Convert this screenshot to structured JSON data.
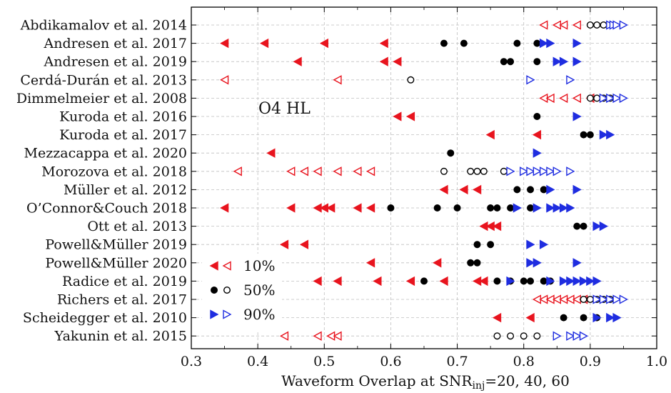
{
  "chart_data": {
    "type": "scatter",
    "title": "",
    "annotation": "O4 HL",
    "xlabel_main": "Waveform Overlap at SNR",
    "xlabel_sub": "inj",
    "xlabel_tail": "=20, 40, 60",
    "xlim": [
      0.3,
      1.0
    ],
    "xticks": [
      "0.3",
      "0.4",
      "0.5",
      "0.6",
      "0.7",
      "0.8",
      "0.9",
      "1.0"
    ],
    "grid": true,
    "legend_position": "lower-left",
    "legend": [
      {
        "label": "10%",
        "color": "#e8141e",
        "marker": "triangle-left"
      },
      {
        "label": "50%",
        "color": "#000000",
        "marker": "circle"
      },
      {
        "label": "90%",
        "color": "#1f2de0",
        "marker": "triangle-right"
      }
    ],
    "series": [
      {
        "name": "10%",
        "color": "#e8141e",
        "marker": "triangle-left"
      },
      {
        "name": "50%",
        "color": "#000000",
        "marker": "circle"
      },
      {
        "name": "90%",
        "color": "#1f2de0",
        "marker": "triangle-right"
      }
    ],
    "categories": [
      {
        "label": "Abdikamalov et al. 2014",
        "p10_filled": [],
        "p10_open": [
          0.83,
          0.85,
          0.86,
          0.88
        ],
        "p50_filled": [],
        "p50_open": [
          0.9,
          0.91,
          0.92
        ],
        "p90_filled": [],
        "p90_open": [
          0.93,
          0.935,
          0.94,
          0.95
        ]
      },
      {
        "label": "Andresen et al. 2017",
        "p10_filled": [
          0.35,
          0.41,
          0.5,
          0.59
        ],
        "p10_open": [],
        "p50_filled": [
          0.68,
          0.71,
          0.79,
          0.82
        ],
        "p50_open": [],
        "p90_filled": [
          0.83,
          0.84,
          0.88
        ],
        "p90_open": []
      },
      {
        "label": "Andresen et al. 2019",
        "p10_filled": [
          0.46,
          0.59,
          0.61
        ],
        "p10_open": [],
        "p50_filled": [
          0.77,
          0.78,
          0.82
        ],
        "p50_open": [],
        "p90_filled": [
          0.85,
          0.86,
          0.88
        ],
        "p90_open": []
      },
      {
        "label": "Cerdá-Durán et al. 2013",
        "p10_filled": [],
        "p10_open": [
          0.35,
          0.52
        ],
        "p50_filled": [],
        "p50_open": [
          0.63
        ],
        "p90_filled": [],
        "p90_open": [
          0.81,
          0.87
        ]
      },
      {
        "label": "Dimmelmeier et al. 2008",
        "p10_filled": [],
        "p10_open": [
          0.83,
          0.84,
          0.86,
          0.88,
          0.9
        ],
        "p50_filled": [],
        "p50_open": [
          0.9,
          0.91,
          0.92,
          0.93
        ],
        "p90_filled": [],
        "p90_open": [
          0.92,
          0.93,
          0.94,
          0.95
        ]
      },
      {
        "label": "Kuroda et al. 2016",
        "p10_filled": [
          0.61,
          0.63
        ],
        "p10_open": [],
        "p50_filled": [
          0.82
        ],
        "p50_open": [],
        "p90_filled": [
          0.88
        ],
        "p90_open": []
      },
      {
        "label": "Kuroda et al. 2017",
        "p10_filled": [
          0.75,
          0.82
        ],
        "p10_open": [],
        "p50_filled": [
          0.89,
          0.9
        ],
        "p50_open": [],
        "p90_filled": [
          0.92,
          0.93
        ],
        "p90_open": []
      },
      {
        "label": "Mezzacappa et al. 2020",
        "p10_filled": [
          0.42
        ],
        "p10_open": [],
        "p50_filled": [
          0.69
        ],
        "p50_open": [],
        "p90_filled": [
          0.82
        ],
        "p90_open": []
      },
      {
        "label": "Morozova et al. 2018",
        "p10_filled": [],
        "p10_open": [
          0.37,
          0.45,
          0.47,
          0.49,
          0.52,
          0.55,
          0.57
        ],
        "p50_filled": [],
        "p50_open": [
          0.68,
          0.72,
          0.73,
          0.74,
          0.77
        ],
        "p90_filled": [],
        "p90_open": [
          0.78,
          0.8,
          0.81,
          0.82,
          0.83,
          0.84,
          0.85,
          0.87
        ]
      },
      {
        "label": "Müller et al. 2012",
        "p10_filled": [
          0.68,
          0.71,
          0.73
        ],
        "p10_open": [],
        "p50_filled": [
          0.79,
          0.81,
          0.83
        ],
        "p50_open": [],
        "p90_filled": [
          0.84,
          0.88
        ],
        "p90_open": []
      },
      {
        "label": "O’Connor&Couch 2018",
        "p10_filled": [
          0.35,
          0.45,
          0.49,
          0.5,
          0.51,
          0.55,
          0.57
        ],
        "p10_open": [],
        "p50_filled": [
          0.6,
          0.67,
          0.7,
          0.75,
          0.76,
          0.78,
          0.81
        ],
        "p50_open": [],
        "p90_filled": [
          0.79,
          0.82,
          0.84,
          0.85,
          0.86,
          0.87
        ],
        "p90_open": []
      },
      {
        "label": "Ott et al. 2013",
        "p10_filled": [
          0.74,
          0.75,
          0.76
        ],
        "p10_open": [],
        "p50_filled": [
          0.88,
          0.89
        ],
        "p50_open": [],
        "p90_filled": [
          0.91,
          0.92
        ],
        "p90_open": []
      },
      {
        "label": "Powell&Müller 2019",
        "p10_filled": [
          0.44,
          0.47
        ],
        "p10_open": [],
        "p50_filled": [
          0.73,
          0.75
        ],
        "p50_open": [],
        "p90_filled": [
          0.81,
          0.83
        ],
        "p90_open": []
      },
      {
        "label": "Powell&Müller 2020",
        "p10_filled": [
          0.57,
          0.67
        ],
        "p10_open": [],
        "p50_filled": [
          0.72,
          0.73
        ],
        "p50_open": [],
        "p90_filled": [
          0.81,
          0.82,
          0.88
        ],
        "p90_open": []
      },
      {
        "label": "Radice et al. 2019",
        "p10_filled": [
          0.49,
          0.52,
          0.58,
          0.63,
          0.68,
          0.73,
          0.74
        ],
        "p10_open": [],
        "p50_filled": [
          0.65,
          0.76,
          0.78,
          0.8,
          0.81,
          0.83,
          0.84
        ],
        "p50_open": [],
        "p90_filled": [
          0.78,
          0.84,
          0.86,
          0.87,
          0.88,
          0.89,
          0.9,
          0.91
        ],
        "p90_open": []
      },
      {
        "label": "Richers et al. 2017",
        "p10_filled": [],
        "p10_open": [
          0.82,
          0.83,
          0.84,
          0.85,
          0.86,
          0.87,
          0.88,
          0.89
        ],
        "p50_filled": [],
        "p50_open": [
          0.89,
          0.9,
          0.91,
          0.92,
          0.93
        ],
        "p90_filled": [],
        "p90_open": [
          0.91,
          0.92,
          0.93,
          0.94,
          0.95
        ]
      },
      {
        "label": "Scheidegger et al. 2010",
        "p10_filled": [
          0.76,
          0.81
        ],
        "p10_open": [],
        "p50_filled": [
          0.86,
          0.89,
          0.91
        ],
        "p50_open": [],
        "p90_filled": [
          0.91,
          0.93,
          0.94
        ],
        "p90_open": []
      },
      {
        "label": "Yakunin et al. 2015",
        "p10_filled": [],
        "p10_open": [
          0.44,
          0.49,
          0.51,
          0.52
        ],
        "p50_filled": [],
        "p50_open": [
          0.76,
          0.78,
          0.8,
          0.82
        ],
        "p90_filled": [],
        "p90_open": [
          0.85,
          0.87,
          0.88,
          0.89
        ]
      }
    ]
  }
}
